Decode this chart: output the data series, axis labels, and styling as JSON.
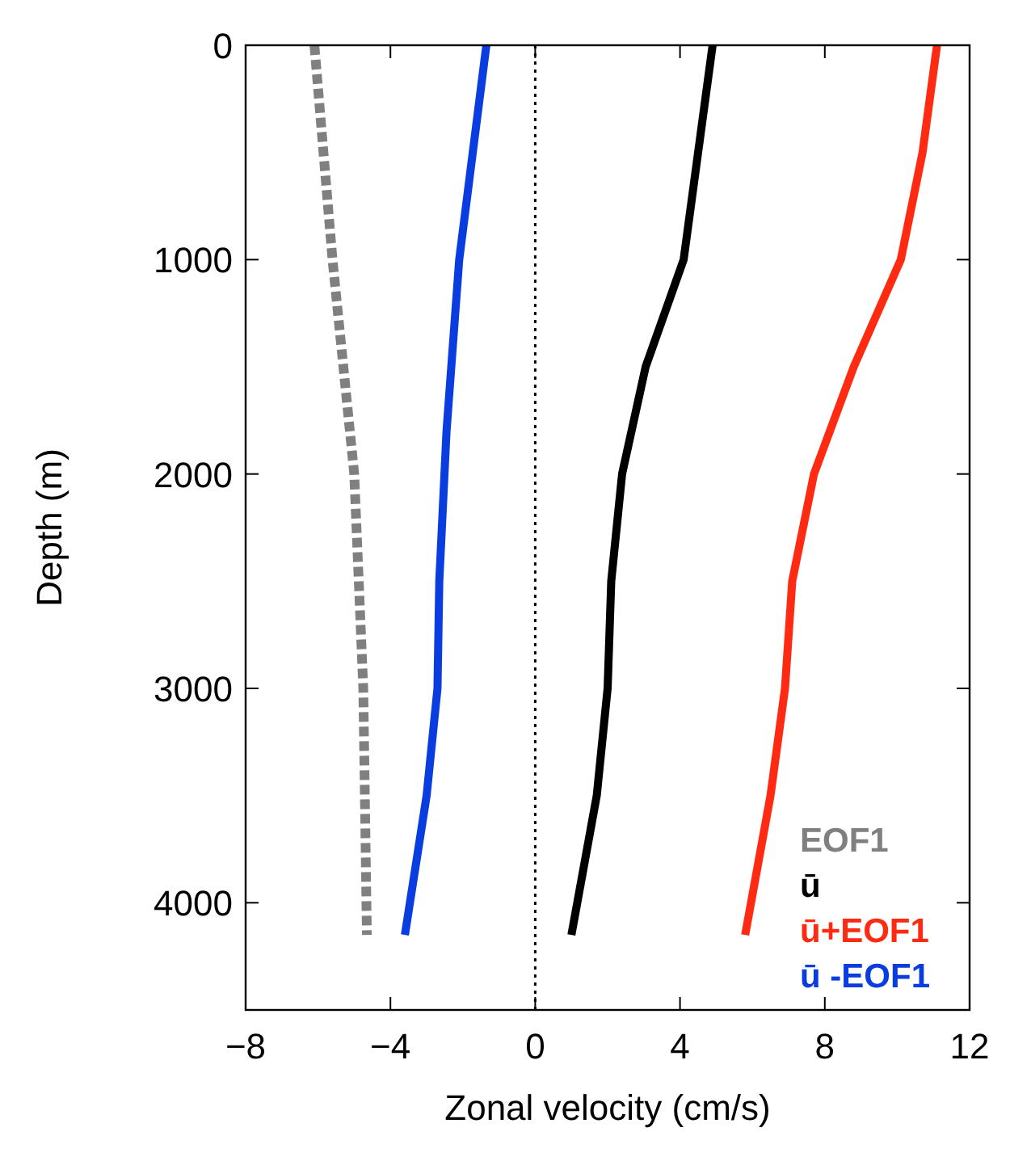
{
  "chart_data": {
    "type": "line",
    "xlabel": "Zonal velocity (cm/s)",
    "ylabel": "Depth (m)",
    "xlim": [
      -8,
      12
    ],
    "ylim": [
      4500,
      0
    ],
    "xticks": [
      {
        "value": -8,
        "label": "−8"
      },
      {
        "value": -4,
        "label": "−4"
      },
      0,
      4,
      8,
      12
    ],
    "yticks": [
      0,
      1000,
      2000,
      3000,
      4000
    ],
    "grid": false,
    "legend": "bottom right",
    "marker": "none",
    "ref_lines": [
      {
        "axis": "x",
        "value": 0,
        "color": "#000000",
        "line_style": "dotted"
      }
    ],
    "series": [
      {
        "name": "EOF1",
        "color": "#808080",
        "line_style": "dashed",
        "x": [
          -6.1,
          -5.6,
          -5.0,
          -4.75,
          -4.65
        ],
        "values": [
          0,
          1000,
          2000,
          3000,
          4150
        ]
      },
      {
        "name": "ū",
        "color": "#000000",
        "line_style": "solid",
        "x": [
          4.9,
          4.5,
          4.1,
          3.05,
          2.4,
          2.1,
          2.0,
          1.7,
          1.0
        ],
        "values": [
          0,
          500,
          1000,
          1500,
          2000,
          2500,
          3000,
          3500,
          4150
        ]
      },
      {
        "name": "ū+EOF1",
        "color": "#ff2a12",
        "line_style": "solid",
        "x": [
          11.1,
          10.7,
          10.1,
          8.8,
          7.7,
          7.1,
          6.9,
          6.5,
          5.8
        ],
        "values": [
          0,
          500,
          1000,
          1500,
          2000,
          2500,
          3000,
          3500,
          4150
        ]
      },
      {
        "name": "ū -EOF1",
        "color": "#0a3de0",
        "line_style": "solid",
        "x": [
          -1.35,
          -2.1,
          -2.45,
          -2.65,
          -2.7,
          -3.0,
          -3.6
        ],
        "values": [
          0,
          1000,
          1800,
          2500,
          3000,
          3500,
          4150
        ]
      }
    ]
  }
}
